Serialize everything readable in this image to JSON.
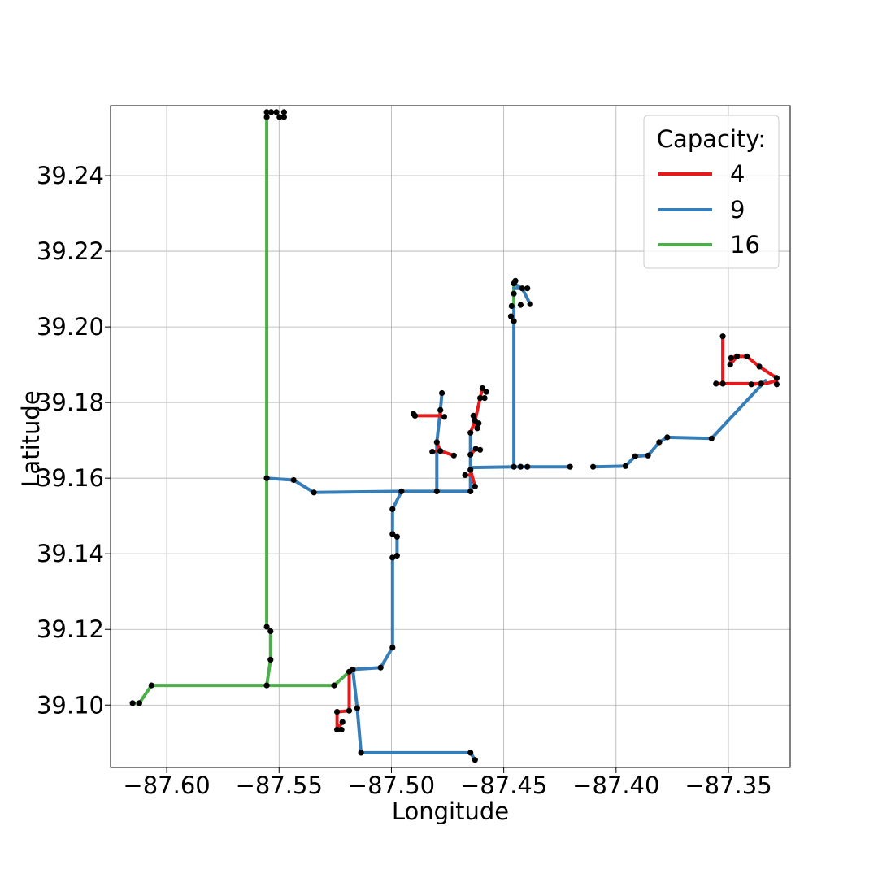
{
  "chart_data": {
    "type": "line",
    "title": "",
    "xlabel": "Longitude",
    "ylabel": "Latitude",
    "xlim": [
      -87.625,
      -87.3225
    ],
    "ylim": [
      39.0835,
      39.2585
    ],
    "xticks": [
      -87.6,
      -87.55,
      -87.5,
      -87.45,
      -87.4,
      -87.35
    ],
    "xtick_labels": [
      "−87.60",
      "−87.55",
      "−87.50",
      "−87.45",
      "−87.40",
      "−87.35"
    ],
    "yticks": [
      39.1,
      39.12,
      39.14,
      39.16,
      39.18,
      39.2,
      39.22,
      39.24
    ],
    "ytick_labels": [
      "39.10",
      "39.12",
      "39.14",
      "39.16",
      "39.18",
      "39.20",
      "39.22",
      "39.24"
    ],
    "grid": true,
    "legend": {
      "title": "Capacity:",
      "placement": "top-right",
      "entries": [
        {
          "label": "4",
          "color": "#e41a1c"
        },
        {
          "label": "9",
          "color": "#377eb8"
        },
        {
          "label": "16",
          "color": "#4daf4a"
        }
      ]
    },
    "marker_color": "#000000",
    "series": [
      {
        "name": "16",
        "color": "#4daf4a",
        "segments": [
          [
            [
              -87.6152,
              39.1005
            ],
            [
              -87.6122,
              39.1005
            ],
            [
              -87.6068,
              39.1052
            ],
            [
              -87.5555,
              39.1052
            ],
            [
              -87.5255,
              39.1052
            ],
            [
              -87.5188,
              39.1088
            ]
          ],
          [
            [
              -87.5555,
              39.1052
            ],
            [
              -87.5538,
              39.112
            ],
            [
              -87.5538,
              39.1195
            ],
            [
              -87.5555,
              39.1207
            ],
            [
              -87.5555,
              39.16
            ],
            [
              -87.5555,
              39.2565
            ],
            [
              -87.5555,
              39.2568
            ]
          ],
          [
            [
              -87.4455,
              39.2052
            ],
            [
              -87.4455,
              39.2115
            ]
          ]
        ]
      },
      {
        "name": "9",
        "color": "#377eb8",
        "segments": [
          [
            [
              -87.5555,
              39.16
            ],
            [
              -87.5435,
              39.1595
            ],
            [
              -87.5345,
              39.1562
            ],
            [
              -87.4955,
              39.1565
            ],
            [
              -87.4798,
              39.1565
            ],
            [
              -87.4648,
              39.1565
            ]
          ],
          [
            [
              -87.4955,
              39.1565
            ],
            [
              -87.4995,
              39.1518
            ],
            [
              -87.4995,
              39.1452
            ],
            [
              -87.4975,
              39.1445
            ],
            [
              -87.4975,
              39.1395
            ],
            [
              -87.4995,
              39.139
            ],
            [
              -87.4995,
              39.1152
            ],
            [
              -87.5048,
              39.1099
            ],
            [
              -87.5172,
              39.1094
            ],
            [
              -87.5188,
              39.1088
            ]
          ],
          [
            [
              -87.5172,
              39.1094
            ],
            [
              -87.5152,
              39.0992
            ],
            [
              -87.5135,
              39.0874
            ],
            [
              -87.4648,
              39.0874
            ],
            [
              -87.4628,
              39.0855
            ]
          ],
          [
            [
              -87.4798,
              39.1565
            ],
            [
              -87.4798,
              39.1695
            ],
            [
              -87.4782,
              39.178
            ],
            [
              -87.4775,
              39.1825
            ]
          ],
          [
            [
              -87.4648,
              39.1565
            ],
            [
              -87.4648,
              39.1628
            ],
            [
              -87.4455,
              39.163
            ],
            [
              -87.4455,
              39.2015
            ],
            [
              -87.4455,
              39.2052
            ]
          ],
          [
            [
              -87.4455,
              39.2115
            ],
            [
              -87.4418,
              39.2102
            ],
            [
              -87.4382,
              39.206
            ]
          ],
          [
            [
              -87.4455,
              39.2102
            ],
            [
              -87.4395,
              39.2102
            ]
          ],
          [
            [
              -87.4455,
              39.163
            ],
            [
              -87.4425,
              39.163
            ],
            [
              -87.4205,
              39.163
            ]
          ],
          [
            [
              -87.4648,
              39.1628
            ],
            [
              -87.4648,
              39.172
            ]
          ],
          [
            [
              -87.4102,
              39.163
            ],
            [
              -87.3958,
              39.1632
            ],
            [
              -87.3915,
              39.1658
            ],
            [
              -87.3858,
              39.166
            ],
            [
              -87.3808,
              39.1695
            ],
            [
              -87.3772,
              39.1708
            ],
            [
              -87.3575,
              39.1705
            ],
            [
              -87.3335,
              39.1858
            ]
          ]
        ]
      },
      {
        "name": "4",
        "color": "#e41a1c",
        "segments": [
          [
            [
              -87.5188,
              39.1088
            ],
            [
              -87.5188,
              39.0985
            ],
            [
              -87.5242,
              39.0982
            ],
            [
              -87.5242,
              39.0935
            ]
          ],
          [
            [
              -87.5242,
              39.0935
            ],
            [
              -87.5218,
              39.0955
            ]
          ],
          [
            [
              -87.4782,
              39.178
            ],
            [
              -87.4782,
              39.1765
            ],
            [
              -87.4895,
              39.1765
            ],
            [
              -87.4902,
              39.177
            ]
          ],
          [
            [
              -87.4782,
              39.1765
            ],
            [
              -87.4765,
              39.1762
            ]
          ],
          [
            [
              -87.4798,
              39.1695
            ],
            [
              -87.4782,
              39.1672
            ],
            [
              -87.4722,
              39.166
            ]
          ],
          [
            [
              -87.4798,
              39.1672
            ],
            [
              -87.4818,
              39.167
            ]
          ],
          [
            [
              -87.4648,
              39.172
            ],
            [
              -87.4628,
              39.1752
            ],
            [
              -87.4605,
              39.1812
            ],
            [
              -87.4595,
              39.1838
            ],
            [
              -87.4578,
              39.1828
            ]
          ],
          [
            [
              -87.4605,
              39.1812
            ],
            [
              -87.4585,
              39.1812
            ]
          ],
          [
            [
              -87.4628,
              39.1752
            ],
            [
              -87.4612,
              39.1745
            ],
            [
              -87.4618,
              39.1732
            ],
            [
              -87.4635,
              39.1765
            ]
          ],
          [
            [
              -87.4648,
              39.1662
            ],
            [
              -87.4625,
              39.1678
            ],
            [
              -87.4605,
              39.1675
            ]
          ],
          [
            [
              -87.4648,
              39.1622
            ],
            [
              -87.4628,
              39.1578
            ]
          ],
          [
            [
              -87.4648,
              39.1608
            ],
            [
              -87.4672,
              39.1608
            ]
          ],
          [
            [
              -87.3525,
              39.1975
            ],
            [
              -87.3525,
              39.185
            ],
            [
              -87.3555,
              39.185
            ],
            [
              -87.3335,
              39.185
            ],
            [
              -87.3285,
              39.1858
            ],
            [
              -87.3285,
              39.1848
            ]
          ],
          [
            [
              -87.3285,
              39.1865
            ],
            [
              -87.3362,
              39.1895
            ],
            [
              -87.3418,
              39.1922
            ],
            [
              -87.3462,
              39.1922
            ],
            [
              -87.3492,
              39.19
            ],
            [
              -87.3488,
              39.1918
            ],
            [
              -87.3455,
              39.1925
            ]
          ],
          [
            [
              -87.3355,
              39.185
            ],
            [
              -87.3398,
              39.1848
            ]
          ]
        ]
      }
    ],
    "points": [
      [
        -87.6152,
        39.1005
      ],
      [
        -87.6122,
        39.1005
      ],
      [
        -87.6068,
        39.1052
      ],
      [
        -87.5555,
        39.1052
      ],
      [
        -87.5255,
        39.1052
      ],
      [
        -87.5538,
        39.112
      ],
      [
        -87.5538,
        39.1195
      ],
      [
        -87.5555,
        39.1207
      ],
      [
        -87.5555,
        39.16
      ],
      [
        -87.5555,
        39.2568
      ],
      [
        -87.5555,
        39.2555
      ],
      [
        -87.5535,
        39.2568
      ],
      [
        -87.5512,
        39.2568
      ],
      [
        -87.5498,
        39.2555
      ],
      [
        -87.5478,
        39.2555
      ],
      [
        -87.5478,
        39.2568
      ],
      [
        -87.5435,
        39.1595
      ],
      [
        -87.5345,
        39.1562
      ],
      [
        -87.4955,
        39.1565
      ],
      [
        -87.4798,
        39.1565
      ],
      [
        -87.4648,
        39.1565
      ],
      [
        -87.4995,
        39.1518
      ],
      [
        -87.4995,
        39.1452
      ],
      [
        -87.4975,
        39.1445
      ],
      [
        -87.4975,
        39.1395
      ],
      [
        -87.4995,
        39.139
      ],
      [
        -87.4995,
        39.1152
      ],
      [
        -87.5048,
        39.1099
      ],
      [
        -87.5172,
        39.1094
      ],
      [
        -87.5188,
        39.1088
      ],
      [
        -87.5152,
        39.0992
      ],
      [
        -87.5135,
        39.0874
      ],
      [
        -87.4648,
        39.0874
      ],
      [
        -87.4628,
        39.0855
      ],
      [
        -87.5188,
        39.0985
      ],
      [
        -87.5242,
        39.0982
      ],
      [
        -87.5242,
        39.0935
      ],
      [
        -87.5218,
        39.0955
      ],
      [
        -87.5222,
        39.0935
      ],
      [
        -87.4798,
        39.1695
      ],
      [
        -87.4782,
        39.178
      ],
      [
        -87.4775,
        39.1825
      ],
      [
        -87.4895,
        39.1765
      ],
      [
        -87.4902,
        39.177
      ],
      [
        -87.4765,
        39.1762
      ],
      [
        -87.4818,
        39.167
      ],
      [
        -87.4782,
        39.1672
      ],
      [
        -87.4722,
        39.166
      ],
      [
        -87.4648,
        39.172
      ],
      [
        -87.4628,
        39.1752
      ],
      [
        -87.4605,
        39.1812
      ],
      [
        -87.4595,
        39.1838
      ],
      [
        -87.4578,
        39.1828
      ],
      [
        -87.4585,
        39.1812
      ],
      [
        -87.4612,
        39.1745
      ],
      [
        -87.4618,
        39.1732
      ],
      [
        -87.4635,
        39.1765
      ],
      [
        -87.4648,
        39.1662
      ],
      [
        -87.4625,
        39.1678
      ],
      [
        -87.4605,
        39.1675
      ],
      [
        -87.4648,
        39.1622
      ],
      [
        -87.4628,
        39.1578
      ],
      [
        -87.4672,
        39.1608
      ],
      [
        -87.4455,
        39.163
      ],
      [
        -87.4425,
        39.163
      ],
      [
        -87.4395,
        39.163
      ],
      [
        -87.4205,
        39.163
      ],
      [
        -87.4455,
        39.2015
      ],
      [
        -87.4468,
        39.2028
      ],
      [
        -87.4465,
        39.2055
      ],
      [
        -87.4455,
        39.2088
      ],
      [
        -87.4455,
        39.2115
      ],
      [
        -87.4448,
        39.2122
      ],
      [
        -87.4418,
        39.2102
      ],
      [
        -87.4395,
        39.2102
      ],
      [
        -87.4382,
        39.206
      ],
      [
        -87.4425,
        39.2058
      ],
      [
        -87.4102,
        39.163
      ],
      [
        -87.3958,
        39.1632
      ],
      [
        -87.3915,
        39.1658
      ],
      [
        -87.3858,
        39.166
      ],
      [
        -87.3808,
        39.1695
      ],
      [
        -87.3772,
        39.1708
      ],
      [
        -87.3575,
        39.1705
      ],
      [
        -87.3525,
        39.1975
      ],
      [
        -87.3555,
        39.185
      ],
      [
        -87.3525,
        39.185
      ],
      [
        -87.3355,
        39.185
      ],
      [
        -87.3285,
        39.1848
      ],
      [
        -87.3285,
        39.1865
      ],
      [
        -87.3362,
        39.1895
      ],
      [
        -87.3418,
        39.1922
      ],
      [
        -87.3462,
        39.1922
      ],
      [
        -87.3492,
        39.19
      ],
      [
        -87.3488,
        39.1918
      ],
      [
        -87.3398,
        39.1848
      ]
    ]
  }
}
